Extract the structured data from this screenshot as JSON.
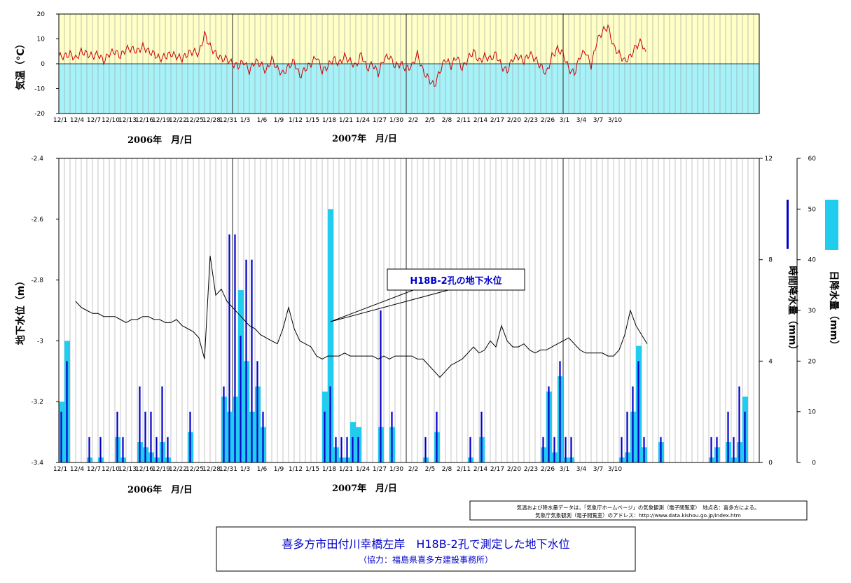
{
  "chart_data": [
    {
      "type": "line",
      "ylabel": "気温（℃）",
      "ylim": [
        -20,
        20
      ],
      "yticks": [
        20,
        10,
        0,
        -10,
        -20
      ],
      "x_tick_labels": [
        "12/1",
        "12/4",
        "12/7",
        "12/10",
        "12/13",
        "12/16",
        "12/19",
        "12/22",
        "12/25",
        "12/28",
        "12/31",
        "1/3",
        "1/6",
        "1/9",
        "1/12",
        "1/15",
        "1/18",
        "1/21",
        "1/24",
        "1/27",
        "1/30",
        "2/2",
        "2/5",
        "2/8",
        "2/11",
        "2/14",
        "2/17",
        "2/20",
        "2/23",
        "2/26",
        "3/1",
        "3/4",
        "3/7",
        "3/10"
      ],
      "year_labels": [
        "2006年　月/日",
        "2007年　月/日"
      ],
      "background": {
        "above_zero": "#ffffc8",
        "below_zero": "#a6f2f8"
      },
      "series": [
        {
          "color": "#cc0000",
          "daily_mean": [
            3,
            3,
            4,
            2,
            5,
            4,
            3,
            4,
            1,
            4,
            5,
            3,
            6,
            6,
            5,
            7,
            5,
            4,
            2,
            3,
            4,
            3,
            2,
            4,
            5,
            4,
            12,
            7,
            4,
            2,
            2,
            0,
            -1,
            1,
            -3,
            1,
            0,
            -3,
            2,
            -2,
            -4,
            -1,
            1,
            -5,
            -2,
            0,
            3,
            -3,
            -1,
            2,
            0,
            3,
            1,
            -1,
            4,
            -2,
            0,
            -4,
            2,
            3,
            -1,
            0,
            -2,
            -1,
            4,
            -3,
            -6,
            -9,
            -3,
            2,
            -1,
            3,
            -2,
            2,
            5,
            1,
            3,
            2,
            4,
            -1,
            -3,
            2,
            3,
            1,
            4,
            2,
            -1,
            -4,
            3,
            6,
            4,
            -2,
            -4,
            3,
            5,
            -1,
            9,
            13,
            15,
            7,
            4,
            1,
            3,
            7,
            9,
            2
          ]
        }
      ]
    },
    {
      "type": "bar",
      "ylabel": "地下水位（m）",
      "ylim": [
        -3.4,
        -2.4
      ],
      "yticks": [
        -2.4,
        -2.6,
        -2.8,
        -3,
        -3.2,
        -3.4
      ],
      "y2label": "時間降水量（mm）",
      "y2lim": [
        0,
        12
      ],
      "y2ticks": [
        12,
        8,
        4,
        0
      ],
      "y3label": "日降水量（mm）",
      "y3lim": [
        0,
        60
      ],
      "y3ticks": [
        60,
        50,
        40,
        30,
        20,
        10,
        0
      ],
      "x_tick_labels": [
        "12/1",
        "12/4",
        "12/7",
        "12/10",
        "12/13",
        "12/16",
        "12/19",
        "12/22",
        "12/25",
        "12/28",
        "12/31",
        "1/3",
        "1/6",
        "1/9",
        "1/12",
        "1/15",
        "1/18",
        "1/21",
        "1/24",
        "1/27",
        "1/30",
        "2/2",
        "2/5",
        "2/8",
        "2/11",
        "2/14",
        "2/17",
        "2/20",
        "2/23",
        "2/26",
        "3/1",
        "3/4",
        "3/7",
        "3/10"
      ],
      "year_labels": [
        "2006年　月/日",
        "2007年　月/日"
      ],
      "annotation": "H18B-2孔の地下水位",
      "groundwater_series": {
        "color": "#000000",
        "start_day": 4,
        "daily_values": [
          -2.87,
          -2.89,
          -2.9,
          -2.91,
          -2.91,
          -2.92,
          -2.92,
          -2.92,
          -2.93,
          -2.94,
          -2.93,
          -2.93,
          -2.92,
          -2.92,
          -2.93,
          -2.93,
          -2.94,
          -2.94,
          -2.93,
          -2.95,
          -2.96,
          -2.97,
          -2.99,
          -3.06,
          -2.72,
          -2.85,
          -2.83,
          -2.87,
          -2.89,
          -2.91,
          -2.93,
          -2.95,
          -2.96,
          -2.98,
          -2.99,
          -3.0,
          -3.01,
          -2.96,
          -2.89,
          -2.96,
          -3.0,
          -3.01,
          -3.02,
          -3.05,
          -3.06,
          -3.05,
          -3.05,
          -3.05,
          -3.04,
          -3.05,
          -3.05,
          -3.05,
          -3.05,
          -3.05,
          -3.06,
          -3.05,
          -3.06,
          -3.05,
          -3.05,
          -3.05,
          -3.05,
          -3.06,
          -3.06,
          -3.08,
          -3.1,
          -3.12,
          -3.1,
          -3.08,
          -3.07,
          -3.06,
          -3.04,
          -3.02,
          -3.04,
          -3.03,
          -3.0,
          -3.02,
          -2.95,
          -3.0,
          -3.02,
          -3.02,
          -3.01,
          -3.03,
          -3.04,
          -3.03,
          -3.03,
          -3.02,
          -3.01,
          -3.0,
          -2.99,
          -3.01,
          -3.03,
          -3.04,
          -3.04,
          -3.04,
          -3.04,
          -3.05,
          -3.05,
          -3.03,
          -2.98,
          -2.9,
          -2.95,
          -2.98,
          -3.01
        ]
      },
      "daily_precip_series": {
        "color": "#22ccee",
        "days": [
          1,
          2,
          6,
          8,
          11,
          12,
          15,
          16,
          17,
          18,
          19,
          20,
          24,
          30,
          31,
          32,
          33,
          34,
          35,
          36,
          37,
          48,
          49,
          50,
          51,
          52,
          53,
          54,
          58,
          60,
          66,
          68,
          74,
          76,
          87,
          88,
          89,
          90,
          91,
          92,
          101,
          102,
          103,
          104,
          105,
          108,
          117,
          118,
          120,
          121,
          122,
          123
        ],
        "values": [
          12,
          24,
          1,
          1,
          5,
          1,
          4,
          3,
          2,
          1,
          4,
          1,
          6,
          13,
          10,
          13,
          34,
          20,
          10,
          15,
          7,
          14,
          50,
          3,
          1,
          1,
          8,
          7,
          7,
          7,
          1,
          6,
          1,
          5,
          3,
          14,
          2,
          17,
          1,
          1,
          1,
          2,
          10,
          23,
          3,
          4,
          1,
          3,
          4,
          1,
          4,
          13
        ]
      },
      "hourly_precip_series": {
        "color": "#0000cc",
        "days": [
          1,
          2,
          6,
          8,
          11,
          12,
          15,
          16,
          17,
          18,
          19,
          20,
          24,
          30,
          31,
          32,
          33,
          34,
          35,
          36,
          37,
          48,
          49,
          50,
          51,
          52,
          53,
          54,
          58,
          60,
          66,
          68,
          74,
          76,
          87,
          88,
          89,
          90,
          91,
          92,
          101,
          102,
          103,
          104,
          105,
          108,
          117,
          118,
          120,
          121,
          122,
          123
        ],
        "values": [
          2,
          4,
          1,
          1,
          2,
          1,
          3,
          2,
          2,
          1,
          3,
          1,
          2,
          3,
          9,
          9,
          5,
          8,
          8,
          4,
          2,
          2,
          3,
          1,
          1,
          1,
          1,
          1,
          6,
          2,
          1,
          2,
          1,
          2,
          1,
          3,
          1,
          4,
          1,
          1,
          1,
          2,
          3,
          4,
          1,
          1,
          1,
          1,
          2,
          1,
          3,
          2
        ]
      }
    }
  ],
  "source_note": {
    "line1": "気温および降水量データは，「気象庁ホームページ」の気象観測（電子閲覧室）　地点名：喜多方による。",
    "line2": "気象庁気象観測（電子閲覧室）のアドレス：http://www.data.kishou.go.jp/index.htm"
  },
  "caption": {
    "title": "喜多方市田付川幸橋左岸　H18B-2孔で測定した地下水位",
    "subtitle": "（協力：福島県喜多方建設事務所）"
  }
}
